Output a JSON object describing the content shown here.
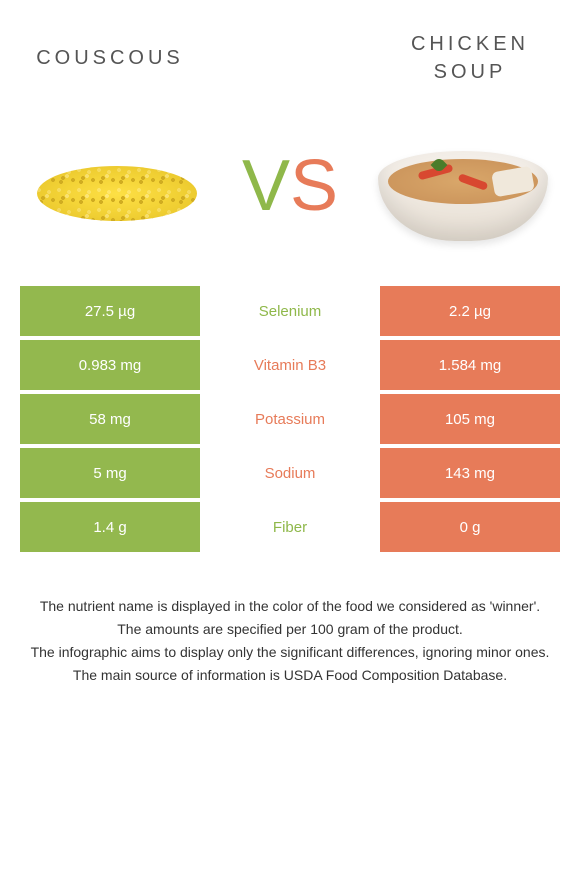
{
  "titles": {
    "left": "Couscous",
    "right": "Chicken soup"
  },
  "vs": {
    "v": "V",
    "s": "S"
  },
  "colors": {
    "green": "#93b84e",
    "orange": "#e77b59",
    "mid_green": "#8fb84a",
    "mid_orange": "#e77b59",
    "bg": "#ffffff"
  },
  "rows": [
    {
      "left": "27.5 µg",
      "mid": "Selenium",
      "right": "2.2 µg",
      "winner": "green"
    },
    {
      "left": "0.983 mg",
      "mid": "Vitamin B3",
      "right": "1.584 mg",
      "winner": "orange"
    },
    {
      "left": "58 mg",
      "mid": "Potassium",
      "right": "105 mg",
      "winner": "orange"
    },
    {
      "left": "5 mg",
      "mid": "Sodium",
      "right": "143 mg",
      "winner": "orange"
    },
    {
      "left": "1.4 g",
      "mid": "Fiber",
      "right": "0 g",
      "winner": "green"
    }
  ],
  "footer": [
    "The nutrient name is displayed in the color of the food we considered as 'winner'.",
    "The amounts are specified per 100 gram of the product.",
    "The infographic aims to display only the significant differences, ignoring minor ones.",
    "The main source of information is USDA Food Composition Database."
  ]
}
